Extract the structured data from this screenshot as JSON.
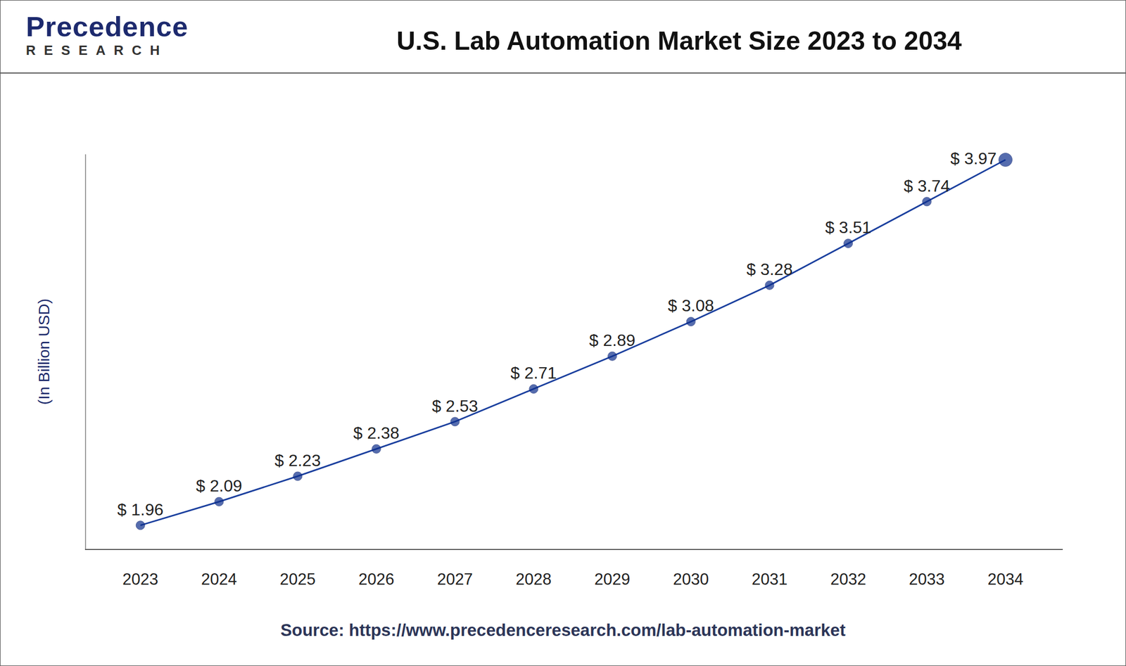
{
  "header": {
    "logo": "Precedence",
    "logo_sub": "RESEARCH"
  },
  "chart_data": {
    "type": "line",
    "title": "U.S. Lab Automation Market Size 2023 to 2034",
    "y_label": "(In Billion USD)",
    "source": "Source: https://www.precedenceresearch.com/lab-automation-market",
    "categories": [
      "2023",
      "2024",
      "2025",
      "2026",
      "2027",
      "2028",
      "2029",
      "2030",
      "2031",
      "2032",
      "2033",
      "2034"
    ],
    "values": [
      1.96,
      2.09,
      2.23,
      2.38,
      2.53,
      2.71,
      2.89,
      3.08,
      3.28,
      3.51,
      3.74,
      3.97
    ],
    "value_labels": [
      "$ 1.96",
      "$ 2.09",
      "$ 2.23",
      "$ 2.38",
      "$ 2.53",
      "$ 2.71",
      "$ 2.89",
      "$ 3.08",
      "$ 3.28",
      "$ 3.51",
      "$ 3.74",
      "$ 3.97"
    ],
    "ylim": [
      1.83,
      4.0
    ],
    "color": "#1a3f9e",
    "marker": "circle",
    "data_labels": true,
    "tick_labels": "x",
    "grid": false
  }
}
